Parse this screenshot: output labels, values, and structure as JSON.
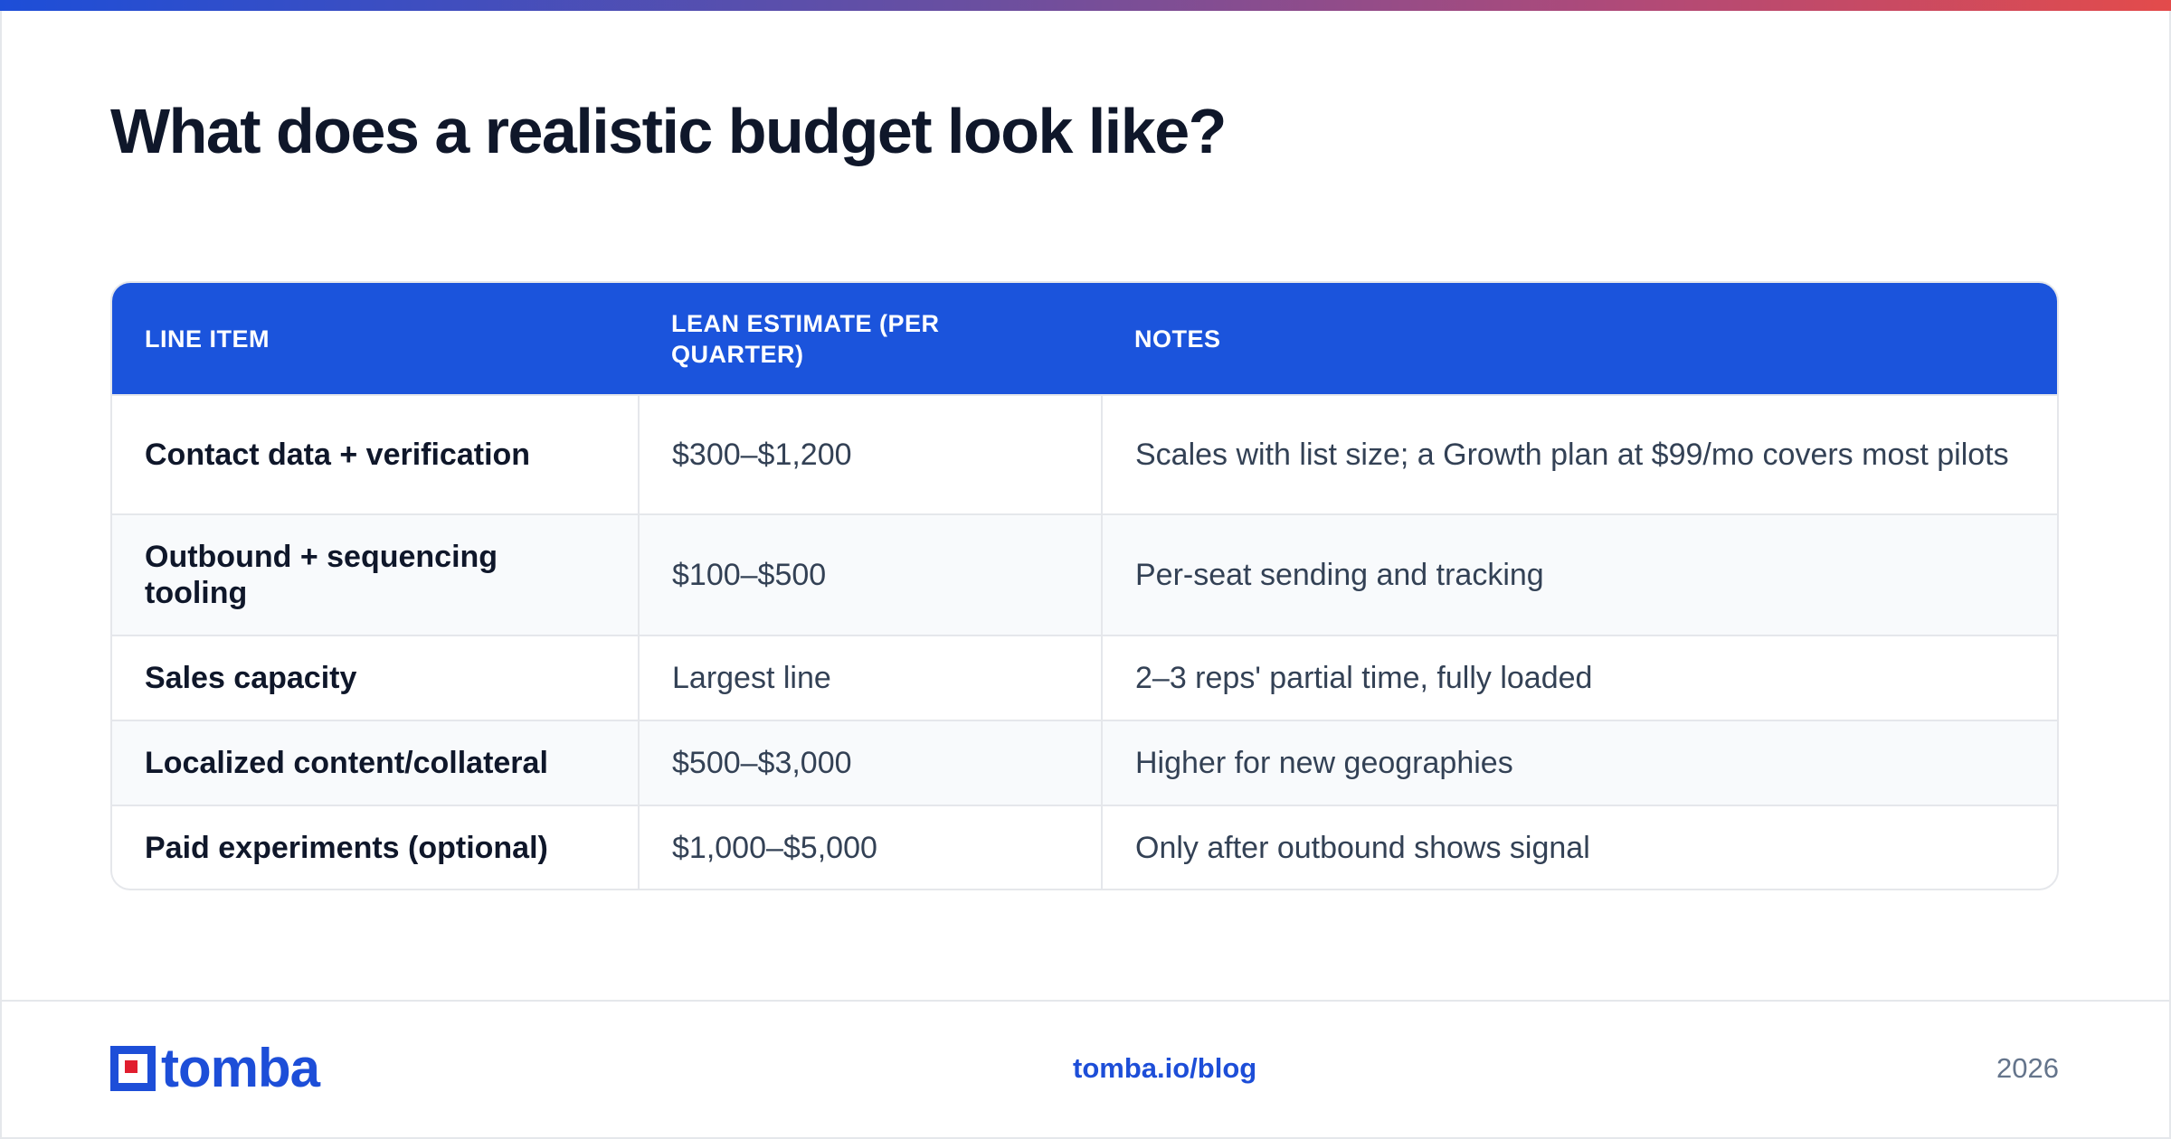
{
  "title": "What does a realistic budget look like?",
  "colors": {
    "accent": "#1b54dc",
    "title": "#0f172a",
    "body_text": "#334155",
    "logo_red": "#e11d2e"
  },
  "table": {
    "headers": [
      "LINE ITEM",
      "LEAN ESTIMATE (PER QUARTER)",
      "NOTES"
    ],
    "rows": [
      {
        "item": "Contact data + verification",
        "estimate": "$300–$1,200",
        "notes": "Scales with list size; a Growth plan at $99/mo covers most pilots"
      },
      {
        "item": "Outbound + sequencing tooling",
        "estimate": "$100–$500",
        "notes": "Per-seat sending and tracking"
      },
      {
        "item": "Sales capacity",
        "estimate": "Largest line",
        "notes": "2–3 reps' partial time, fully loaded"
      },
      {
        "item": "Localized content/collateral",
        "estimate": "$500–$3,000",
        "notes": "Higher for new geographies"
      },
      {
        "item": "Paid experiments (optional)",
        "estimate": "$1,000–$5,000",
        "notes": "Only after outbound shows signal"
      }
    ]
  },
  "footer": {
    "logo_text": "tomba",
    "link": "tomba.io/blog",
    "year": "2026"
  }
}
